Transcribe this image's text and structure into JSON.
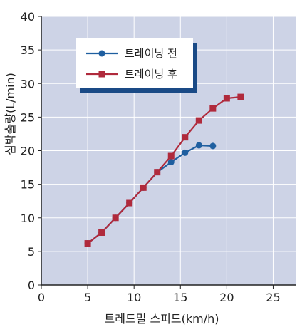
{
  "chart_data": {
    "type": "line",
    "xlabel": "트레드밀 스피드(km/h)",
    "ylabel": "심박출량(L/min)",
    "xlim": [
      0,
      27.5
    ],
    "ylim": [
      0,
      40
    ],
    "xticks": [
      0,
      5,
      10,
      15,
      20,
      25
    ],
    "yticks": [
      0,
      5,
      10,
      15,
      20,
      25,
      30,
      35,
      40
    ],
    "grid": true,
    "legend_position": "top-left",
    "series": [
      {
        "name": "트레이닝 전",
        "color": "#1f5fa0",
        "marker": "circle",
        "points": [
          [
            5,
            6.2
          ],
          [
            6.5,
            7.8
          ],
          [
            8,
            10.0
          ],
          [
            9.5,
            12.2
          ],
          [
            11,
            14.5
          ],
          [
            12.5,
            16.8
          ],
          [
            14,
            18.3
          ],
          [
            15.5,
            19.7
          ],
          [
            17,
            20.8
          ],
          [
            18.5,
            20.7
          ]
        ]
      },
      {
        "name": "트레이닝 후",
        "color": "#b02a3c",
        "marker": "square",
        "points": [
          [
            5,
            6.2
          ],
          [
            6.5,
            7.8
          ],
          [
            8,
            10.0
          ],
          [
            9.5,
            12.2
          ],
          [
            11,
            14.5
          ],
          [
            12.5,
            16.8
          ],
          [
            14,
            19.2
          ],
          [
            15.5,
            22.0
          ],
          [
            17,
            24.5
          ],
          [
            18.5,
            26.3
          ],
          [
            20,
            27.8
          ],
          [
            21.5,
            28.0
          ]
        ]
      }
    ]
  }
}
